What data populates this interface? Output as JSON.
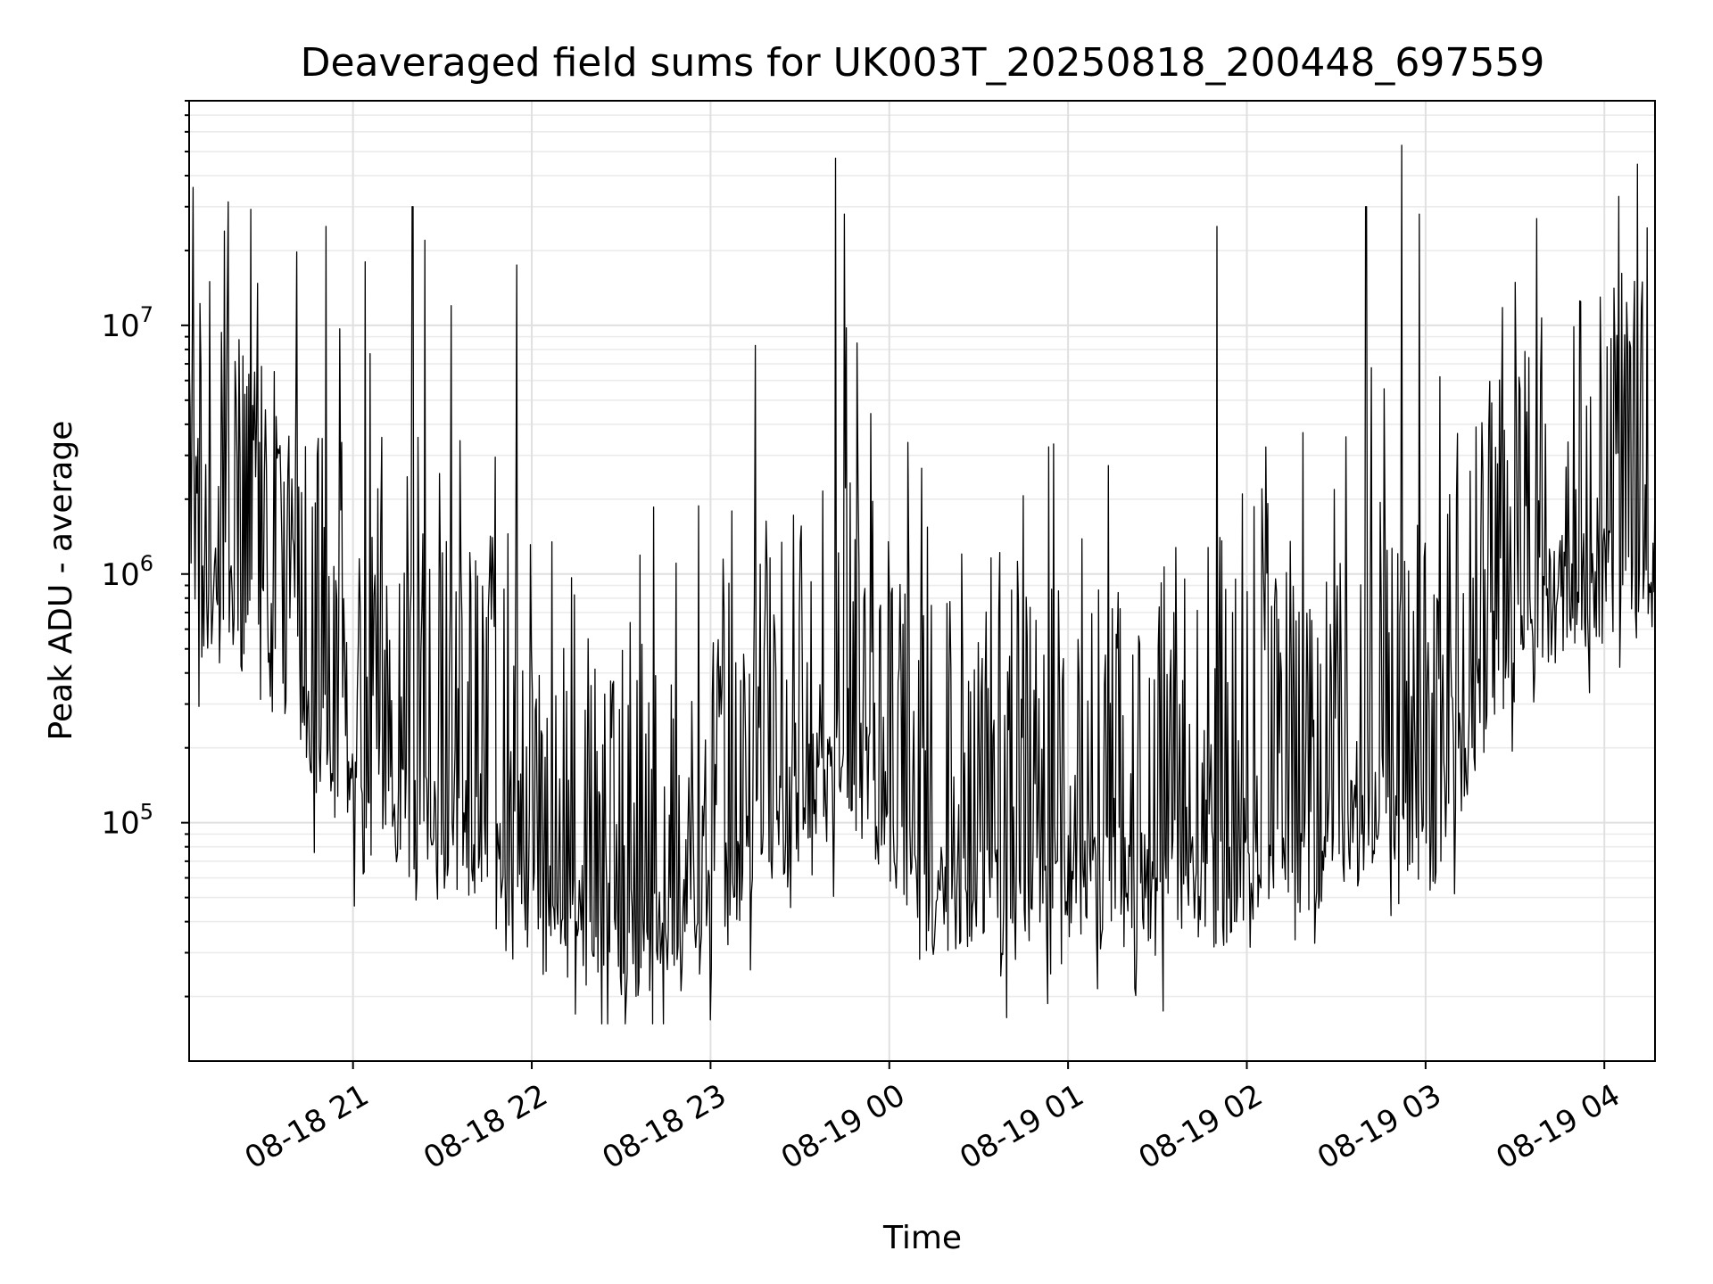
{
  "chart_data": {
    "type": "line",
    "title": "Deaveraged field sums for UK003T_20250818_200448_697559",
    "xlabel": "Time",
    "ylabel": "Peak ADU - average",
    "yscale": "log",
    "xlim": [
      "2025-08-18 20:05",
      "2025-08-19 04:17"
    ],
    "ylim": [
      11000,
      80000000
    ],
    "grid": true,
    "x_tick_labels": [
      "08-18 21",
      "08-18 22",
      "08-18 23",
      "08-19 00",
      "08-19 01",
      "08-19 02",
      "08-19 03",
      "08-19 04"
    ],
    "x_tick_times": [
      "2025-08-18 21:00",
      "2025-08-18 22:00",
      "2025-08-18 23:00",
      "2025-08-19 00:00",
      "2025-08-19 01:00",
      "2025-08-19 02:00",
      "2025-08-19 03:00",
      "2025-08-19 04:00"
    ],
    "y_tick_labels": [
      {
        "base": "10",
        "exp": "5",
        "value": 100000
      },
      {
        "base": "10",
        "exp": "6",
        "value": 1000000
      },
      {
        "base": "10",
        "exp": "7",
        "value": 10000000
      }
    ],
    "series": [
      {
        "color": "#000000",
        "x": [
          "2025-08-18 20:05",
          "2025-08-18 20:15",
          "2025-08-18 20:22",
          "2025-08-18 20:30",
          "2025-08-18 20:38",
          "2025-08-18 20:45",
          "2025-08-18 20:52",
          "2025-08-18 21:00",
          "2025-08-18 21:08",
          "2025-08-18 21:15",
          "2025-08-18 21:22",
          "2025-08-18 21:30",
          "2025-08-18 21:38",
          "2025-08-18 21:45",
          "2025-08-18 21:52",
          "2025-08-18 22:00",
          "2025-08-18 22:08",
          "2025-08-18 22:15",
          "2025-08-18 22:22",
          "2025-08-18 22:30",
          "2025-08-18 22:38",
          "2025-08-18 22:45",
          "2025-08-18 22:52",
          "2025-08-18 23:00",
          "2025-08-18 23:08",
          "2025-08-18 23:15",
          "2025-08-18 23:22",
          "2025-08-18 23:30",
          "2025-08-18 23:38",
          "2025-08-18 23:45",
          "2025-08-18 23:52",
          "2025-08-19 00:00",
          "2025-08-19 00:08",
          "2025-08-19 00:15",
          "2025-08-19 00:22",
          "2025-08-19 00:30",
          "2025-08-19 00:38",
          "2025-08-19 00:45",
          "2025-08-19 00:52",
          "2025-08-19 01:00",
          "2025-08-19 01:08",
          "2025-08-19 01:15",
          "2025-08-19 01:22",
          "2025-08-19 01:30",
          "2025-08-19 01:38",
          "2025-08-19 01:45",
          "2025-08-19 01:52",
          "2025-08-19 02:00",
          "2025-08-19 02:08",
          "2025-08-19 02:15",
          "2025-08-19 02:22",
          "2025-08-19 02:30",
          "2025-08-19 02:38",
          "2025-08-19 02:45",
          "2025-08-19 02:52",
          "2025-08-19 03:00",
          "2025-08-19 03:08",
          "2025-08-19 03:15",
          "2025-08-19 03:22",
          "2025-08-19 03:30",
          "2025-08-19 03:38",
          "2025-08-19 03:45",
          "2025-08-19 03:52",
          "2025-08-19 04:00",
          "2025-08-19 04:08",
          "2025-08-19 04:17"
        ],
        "y": [
          900000,
          700000,
          600000,
          500000,
          400000,
          250000,
          180000,
          130000,
          120000,
          110000,
          100000,
          95000,
          85000,
          70000,
          50000,
          45000,
          42000,
          40000,
          38000,
          35000,
          33000,
          32000,
          35000,
          45000,
          55000,
          70000,
          90000,
          120000,
          150000,
          170000,
          140000,
          100000,
          60000,
          50000,
          48000,
          48000,
          50000,
          52000,
          55000,
          60000,
          60000,
          55000,
          52000,
          50000,
          50000,
          52000,
          55000,
          60000,
          65000,
          70000,
          75000,
          85000,
          100000,
          130000,
          120000,
          90000,
          120000,
          250000,
          400000,
          550000,
          700000,
          800000,
          850000,
          900000,
          950000,
          1000000
        ],
        "peaks": [
          {
            "x": "2025-08-18 20:12",
            "y": 15000000
          },
          {
            "x": "2025-08-18 20:51",
            "y": 25000000
          },
          {
            "x": "2025-08-18 21:04",
            "y": 18000000
          },
          {
            "x": "2025-08-18 21:20",
            "y": 30000000
          },
          {
            "x": "2025-08-18 21:24",
            "y": 22000000
          },
          {
            "x": "2025-08-18 21:33",
            "y": 12000000
          },
          {
            "x": "2025-08-18 21:55",
            "y": 17500000
          },
          {
            "x": "2025-08-18 23:15",
            "y": 8300000
          },
          {
            "x": "2025-08-18 23:42",
            "y": 47000000
          },
          {
            "x": "2025-08-18 23:45",
            "y": 28000000
          },
          {
            "x": "2025-08-19 01:50",
            "y": 25000000
          },
          {
            "x": "2025-08-19 02:40",
            "y": 30000000
          },
          {
            "x": "2025-08-19 02:52",
            "y": 53000000
          },
          {
            "x": "2025-08-19 02:58",
            "y": 28000000
          },
          {
            "x": "2025-08-19 04:05",
            "y": 33000000
          }
        ]
      }
    ]
  }
}
